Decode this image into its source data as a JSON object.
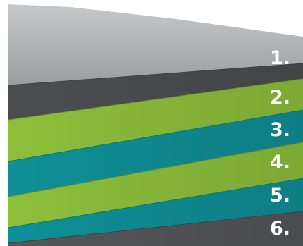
{
  "layers": [
    {
      "label": "1.",
      "color": "#9a9b9d"
    },
    {
      "label": "2.",
      "color": "#8dbf3b"
    },
    {
      "label": "3.",
      "color": "#0f8f96"
    },
    {
      "label": "4.",
      "color": "#8dbf3b"
    },
    {
      "label": "5.",
      "color": "#0f8f96"
    },
    {
      "label": "6.",
      "color": "#55565a"
    }
  ]
}
